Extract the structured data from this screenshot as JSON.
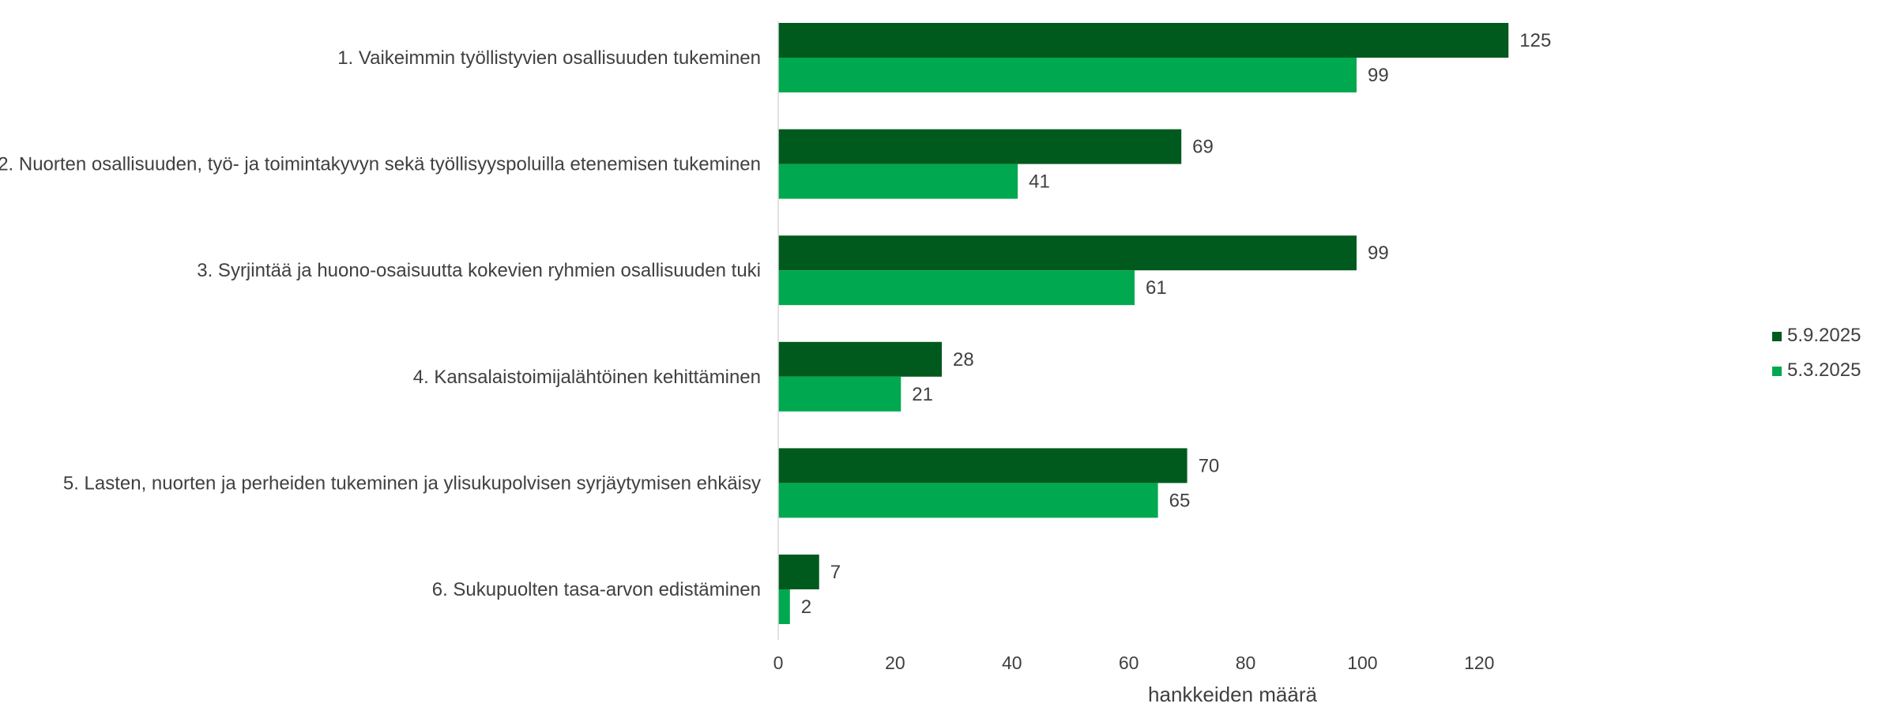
{
  "chart_data": {
    "type": "bar",
    "orientation": "horizontal",
    "categories": [
      "1. Vaikeimmin työllistyvien osallisuuden tukeminen",
      "2. Nuorten osallisuuden, työ- ja toimintakyvyn sekä työllisyyspoluilla etenemisen tukeminen",
      "3. Syrjintää ja huono-osaisuutta kokevien ryhmien osallisuuden tuki",
      "4. Kansalaistoimijalähtöinen kehittäminen",
      "5. Lasten, nuorten ja perheiden tukeminen ja ylisukupolvisen syrjäytymisen ehkäisy",
      "6. Sukupuolten tasa-arvon edistäminen"
    ],
    "series": [
      {
        "name": "5.9.2025",
        "color": "#005a1e",
        "values": [
          125,
          69,
          99,
          28,
          70,
          7
        ]
      },
      {
        "name": "5.3.2025",
        "color": "#00a84f",
        "values": [
          99,
          41,
          61,
          21,
          65,
          2
        ]
      }
    ],
    "xlabel": "hankkeiden määrä",
    "ylabel": "",
    "xlim": [
      0,
      130
    ],
    "xticks": [
      0,
      20,
      40,
      60,
      80,
      100,
      120
    ],
    "grid": false,
    "legend_position": "right",
    "data_labels": true,
    "axis_color": "#d9d9d9",
    "text_color": "#404040"
  }
}
